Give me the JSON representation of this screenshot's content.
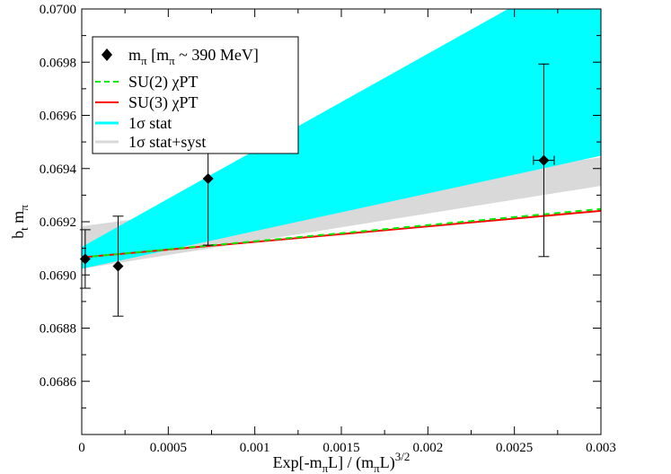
{
  "chart_data": {
    "type": "scatter",
    "xlabel": {
      "main": "Exp[-m",
      "sub1": "π",
      "mid": "L] / (m",
      "sub2": "π",
      "tail": "L)",
      "sup": "3/2"
    },
    "ylabel": {
      "main": "b",
      "sub1": "t",
      "mid": " m",
      "sub2": "π"
    },
    "xlim": [
      0,
      0.003
    ],
    "ylim": [
      0.0684,
      0.07
    ],
    "x_ticks": [
      0,
      0.0005,
      0.001,
      0.0015,
      0.002,
      0.0025,
      0.003
    ],
    "x_tick_labels": [
      "0",
      "0.0005",
      "0.001",
      "0.0015",
      "0.002",
      "0.0025",
      "0.003"
    ],
    "y_ticks": [
      0.0686,
      0.0688,
      0.069,
      0.0692,
      0.0694,
      0.0696,
      0.0698,
      0.07
    ],
    "y_tick_labels": [
      "0.0686",
      "0.0688",
      "0.0690",
      "0.0692",
      "0.0694",
      "0.0696",
      "0.0698",
      "0.0700"
    ],
    "grid": false,
    "legend_position": "top-left",
    "legend": [
      {
        "kind": "marker",
        "label_main": "m",
        "label_sub": "π",
        "label_rest": "  [m",
        "label_sub2": "π",
        "label_tail": " ~ 390 MeV]"
      },
      {
        "kind": "dashed",
        "label": "SU(2) χPT",
        "color": "#00ee00"
      },
      {
        "kind": "line",
        "label": "SU(3) χPT",
        "color": "#ff0000"
      },
      {
        "kind": "line",
        "label": "1σ stat",
        "color": "#00ffff"
      },
      {
        "kind": "line",
        "label": "1σ stat+syst",
        "color": "#d9d9d9"
      }
    ],
    "colors": {
      "stat_band": "#00ffff",
      "syst_band": "#d9d9d9",
      "su2": "#00ee00",
      "su3": "#ff0000",
      "points": "#000000"
    },
    "points": [
      {
        "x": 2e-05,
        "y": 0.06906,
        "yerr": 0.00011,
        "xerr": 0
      },
      {
        "x": 0.00021,
        "y": 0.069033,
        "yerr": 0.000188,
        "xerr": 0
      },
      {
        "x": 0.00073,
        "y": 0.069362,
        "yerr": 0.00025,
        "xerr": 0
      },
      {
        "x": 0.00267,
        "y": 0.069431,
        "yerr": 0.000362,
        "xerr": 6e-05
      }
    ],
    "su2_line": {
      "x": [
        0,
        0.003
      ],
      "y": [
        0.069066,
        0.069248
      ]
    },
    "su3_line": {
      "x": [
        0,
        0.003
      ],
      "y": [
        0.069066,
        0.069241
      ]
    },
    "syst_band": {
      "x": [
        0,
        0.003
      ],
      "upper": [
        0.069183,
        0.069442
      ],
      "lower": [
        0.069023,
        0.069335
      ]
    },
    "stat_band": {
      "x": [
        0,
        0.003
      ],
      "upper": [
        0.069105,
        0.070195
      ],
      "lower": [
        0.069023,
        0.069448
      ]
    }
  }
}
